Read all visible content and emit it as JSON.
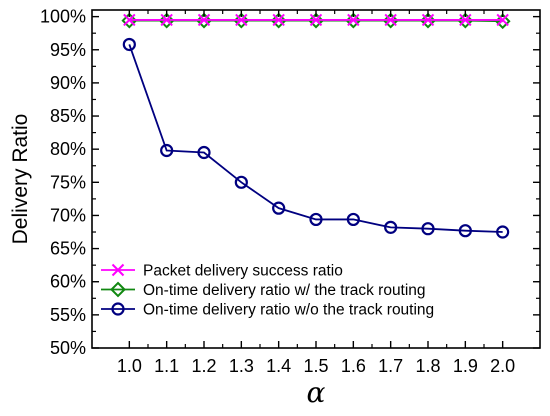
{
  "chart_data": {
    "type": "line",
    "title": "",
    "xlabel": "α",
    "ylabel": "Delivery Ratio",
    "x": [
      1.0,
      1.1,
      1.2,
      1.3,
      1.4,
      1.5,
      1.6,
      1.7,
      1.8,
      1.9,
      2.0
    ],
    "x_tick_labels": [
      "1.0",
      "1.1",
      "1.2",
      "1.3",
      "1.4",
      "1.5",
      "1.6",
      "1.7",
      "1.8",
      "1.9",
      "2.0"
    ],
    "xlim": [
      0.9,
      2.1
    ],
    "ylim": [
      50,
      101
    ],
    "y_ticks": [
      50,
      55,
      60,
      65,
      70,
      75,
      80,
      85,
      90,
      95,
      100
    ],
    "y_tick_labels": [
      "50%",
      "55%",
      "60%",
      "65%",
      "70%",
      "75%",
      "80%",
      "85%",
      "90%",
      "95%",
      "100%"
    ],
    "grid": false,
    "legend_position": "bottom-left",
    "series": [
      {
        "name": "Packet delivery success ratio",
        "marker": "x",
        "color": "#ff00ff",
        "values": [
          99.5,
          99.5,
          99.5,
          99.5,
          99.5,
          99.5,
          99.5,
          99.5,
          99.5,
          99.5,
          99.5
        ]
      },
      {
        "name": "On-time delivery ratio w/ the track routing",
        "marker": "diamond",
        "color": "#118811",
        "values": [
          99.4,
          99.4,
          99.4,
          99.4,
          99.4,
          99.4,
          99.4,
          99.4,
          99.4,
          99.4,
          99.3
        ]
      },
      {
        "name": "On-time delivery ratio w/o the track routing",
        "marker": "circle",
        "color": "#000080",
        "values": [
          95.8,
          79.8,
          79.5,
          75.0,
          71.1,
          69.4,
          69.4,
          68.2,
          68.0,
          67.7,
          67.5
        ]
      }
    ]
  }
}
